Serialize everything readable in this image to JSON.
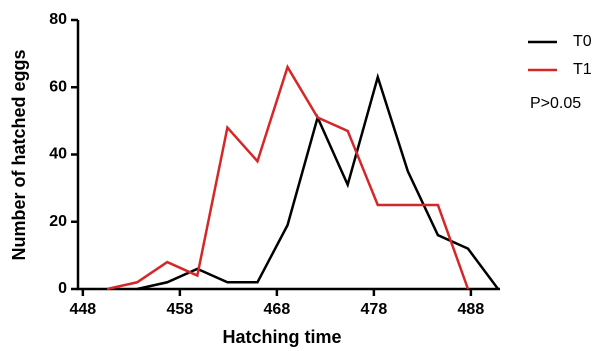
{
  "chart_data": {
    "type": "line",
    "xlabel": "Hatching time",
    "ylabel": "Number of hatched eggs",
    "annotation": "P>0.05",
    "xlim": [
      447.5,
      491
    ],
    "xticks": [
      448,
      458,
      468,
      478,
      488
    ],
    "ylim": [
      0,
      80
    ],
    "yticks": [
      0,
      20,
      40,
      60,
      80
    ],
    "series": [
      {
        "name": "T0",
        "color": "#000000",
        "x": [
          453.6,
          456.7,
          459.8,
          462.9,
          466.0,
          469.1,
          472.2,
          475.3,
          478.4,
          481.5,
          484.6,
          487.7,
          490.8
        ],
        "values": [
          0,
          2,
          6,
          2,
          2,
          19,
          51,
          31,
          63,
          35,
          16,
          12,
          0
        ]
      },
      {
        "name": "T1",
        "color": "#d62728",
        "x": [
          450.5,
          453.6,
          456.7,
          459.8,
          462.9,
          466.0,
          469.1,
          472.2,
          475.3,
          478.4,
          481.5,
          484.6,
          487.7
        ],
        "values": [
          0,
          2,
          8,
          4,
          48,
          38,
          66,
          51,
          47,
          25,
          25,
          25,
          0
        ]
      }
    ]
  }
}
